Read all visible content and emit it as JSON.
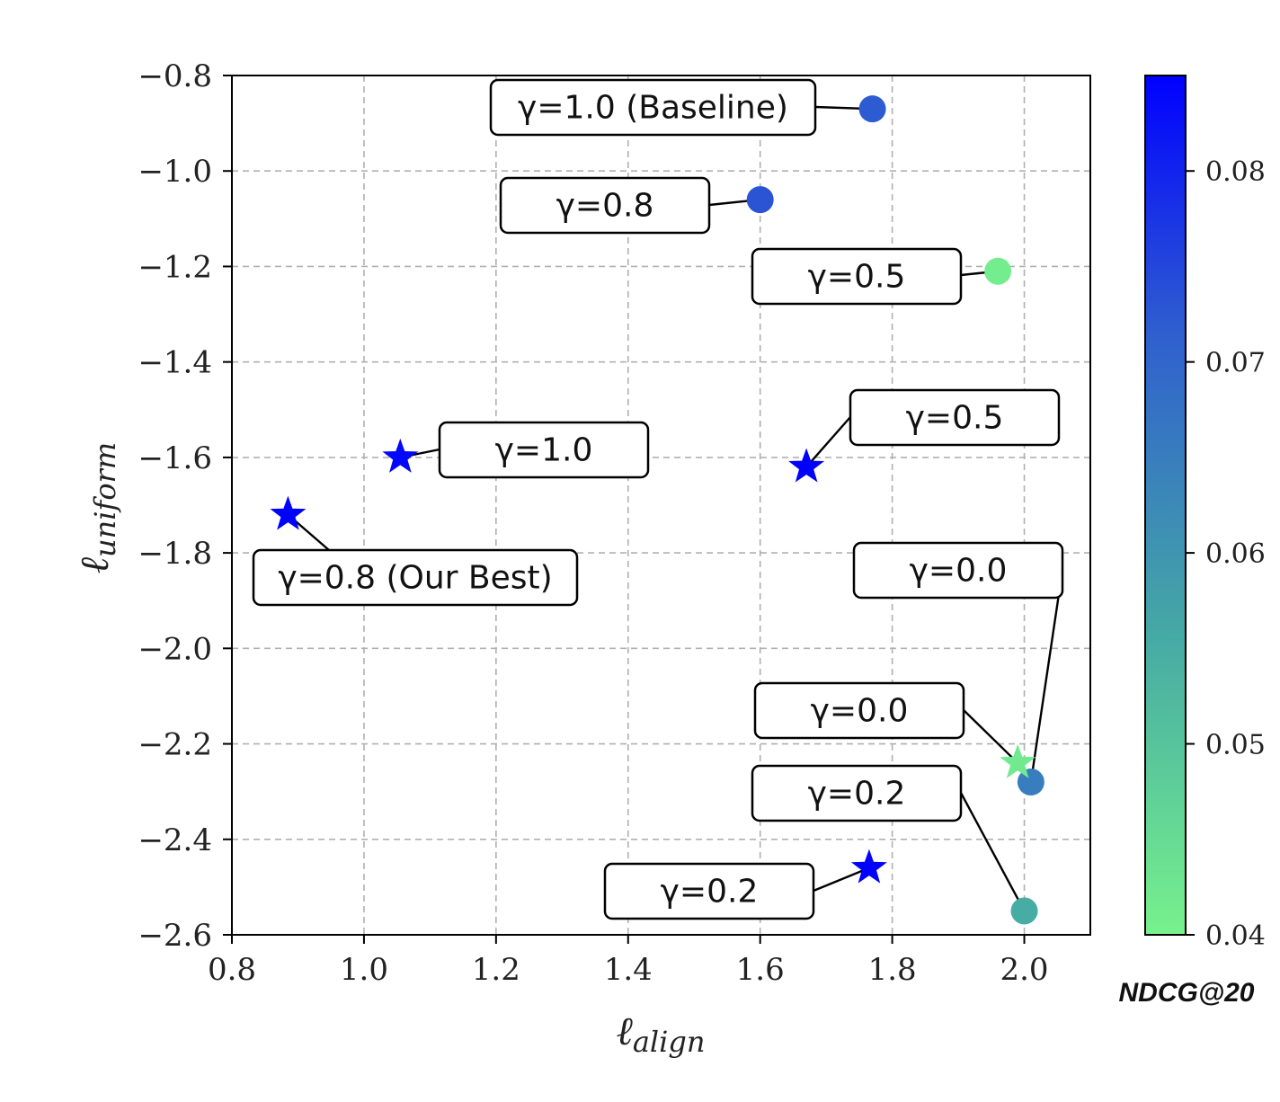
{
  "chart_data": {
    "type": "scatter",
    "xlabel": "ℓ",
    "xlabel_sub": "align",
    "ylabel": "ℓ",
    "ylabel_sub": "uniform",
    "xlim": [
      0.8,
      2.1
    ],
    "ylim": [
      -2.6,
      -0.8
    ],
    "xticks": [
      0.8,
      1.0,
      1.2,
      1.4,
      1.6,
      1.8,
      2.0
    ],
    "xtick_labels": [
      "0.8",
      "1.0",
      "1.2",
      "1.4",
      "1.6",
      "1.8",
      "2.0"
    ],
    "yticks": [
      -0.8,
      -1.0,
      -1.2,
      -1.4,
      -1.6,
      -1.8,
      -2.0,
      -2.2,
      -2.4,
      -2.6
    ],
    "ytick_labels": [
      "−0.8",
      "−1.0",
      "−1.2",
      "−1.4",
      "−1.6",
      "−1.8",
      "−2.0",
      "−2.2",
      "−2.4",
      "−2.6"
    ],
    "grid": true,
    "colorbar": {
      "label": "NDCG@20",
      "range": [
        0.04,
        0.085
      ],
      "ticks": [
        0.04,
        0.05,
        0.06,
        0.07,
        0.08
      ],
      "tick_labels": [
        "0.04",
        "0.05",
        "0.06",
        "0.07",
        "0.08"
      ],
      "color_low": "#77f28c",
      "color_high": "#0000ff"
    },
    "points": [
      {
        "name": "baseline-gamma-1.0",
        "marker": "circle",
        "x": 1.77,
        "y": -0.87,
        "ndcg": 0.072,
        "label": "γ=1.0 (Baseline)"
      },
      {
        "name": "baseline-gamma-0.8",
        "marker": "circle",
        "x": 1.6,
        "y": -1.06,
        "ndcg": 0.073,
        "label": "γ=0.8"
      },
      {
        "name": "baseline-gamma-0.5",
        "marker": "circle",
        "x": 1.96,
        "y": -1.21,
        "ndcg": 0.041,
        "label": "γ=0.5"
      },
      {
        "name": "baseline-gamma-0.0",
        "marker": "circle",
        "x": 2.01,
        "y": -2.28,
        "ndcg": 0.065,
        "label": "γ=0.0"
      },
      {
        "name": "baseline-gamma-0.2",
        "marker": "circle",
        "x": 2.0,
        "y": -2.55,
        "ndcg": 0.055,
        "label": "γ=0.2"
      },
      {
        "name": "ours-gamma-1.0",
        "marker": "star",
        "x": 1.055,
        "y": -1.6,
        "ndcg": 0.084,
        "label": "γ=1.0"
      },
      {
        "name": "ours-gamma-0.8",
        "marker": "star",
        "x": 0.885,
        "y": -1.72,
        "ndcg": 0.085,
        "label": "γ=0.8 (Our Best)"
      },
      {
        "name": "ours-gamma-0.5",
        "marker": "star",
        "x": 1.67,
        "y": -1.62,
        "ndcg": 0.085,
        "label": "γ=0.5"
      },
      {
        "name": "ours-gamma-0.0",
        "marker": "star",
        "x": 1.99,
        "y": -2.24,
        "ndcg": 0.042,
        "label": "γ=0.0"
      },
      {
        "name": "ours-gamma-0.2",
        "marker": "star",
        "x": 1.765,
        "y": -2.46,
        "ndcg": 0.085,
        "label": "γ=0.2"
      }
    ]
  }
}
